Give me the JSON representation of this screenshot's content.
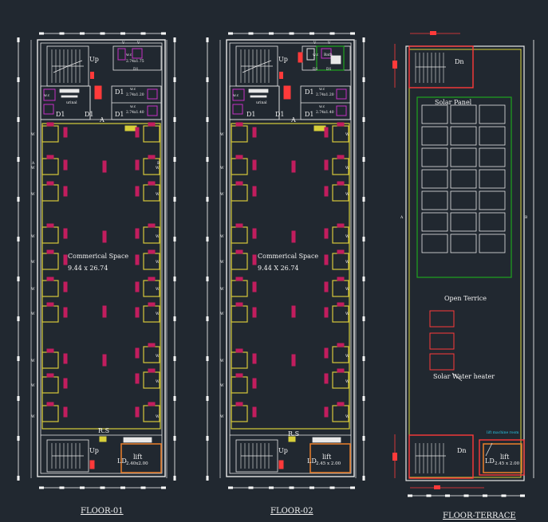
{
  "drawing": {
    "colors": {
      "background": "#212830",
      "wall": "#e8e8e8",
      "partition": "#d8cf3a",
      "column": "#d6c83a",
      "furniture": "#c21d5e",
      "door": "#ff2a2a",
      "fixture": "#c531c5",
      "solar": "#1ea51e",
      "dimension": "#ffffff",
      "stair": "#ff3a3a",
      "lift": "#e07b2c",
      "cyan": "#28c8e6"
    },
    "floor1": {
      "title": "FLOOR-01",
      "space_name": "Commerical Space",
      "space_size": "9.44 x 26.74",
      "up": "Up",
      "wc_label": "w.c",
      "wc_size_1": "2.74x1.75",
      "wc_size_2": "2.74x1.20",
      "wc_size_3": "2.74x1.40",
      "urinal": "urinal",
      "d1": "D1",
      "a": "A",
      "b": "B",
      "w": "W",
      "v": "V",
      "rs": "R.S",
      "ld": "LD",
      "lift": "lift",
      "lift_size": "2.40x2.00"
    },
    "floor2": {
      "title": "FLOOR-02",
      "space_name": "Commerical Space",
      "space_size": "9.44 X 26.74",
      "up": "Up",
      "wc_label": "w.c",
      "wc_size_1": "2.74x1.20",
      "wc_size_2": "2.74x1.40",
      "bath": "Bath",
      "urinal": "urinal",
      "d1": "D1",
      "a": "A",
      "w": "W",
      "v": "V",
      "rs": "R.S",
      "ld": "LD",
      "lift": "lift",
      "lift_size": "2.45 x 2.00"
    },
    "terrace": {
      "title": "FLOOR-TERRACE",
      "dn": "Dn",
      "solar_panel": "Solar Panel",
      "open_terrace": "Open Terrice",
      "water_heater": "Solar Water heater",
      "ld": "LD",
      "lift": "lift",
      "lift_size": "2.45 x 2.00",
      "a": "A",
      "b": "B",
      "cyan_note": "lift machine room"
    }
  }
}
